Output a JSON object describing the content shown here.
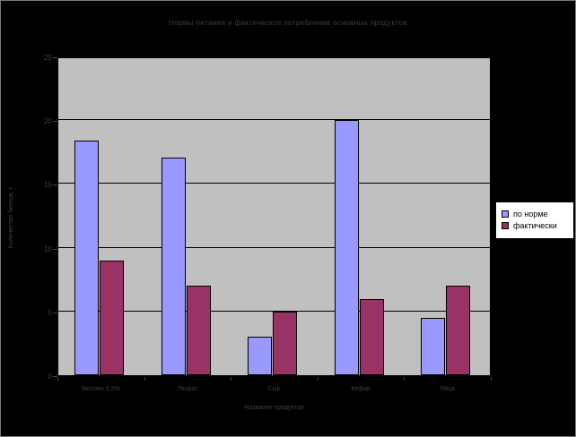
{
  "window": {
    "background": "#000000",
    "plot_background": "#c0c0c0",
    "gridline_color": "#000000",
    "text_color": "#413d47"
  },
  "chart_data": {
    "type": "bar",
    "title": "Нормы питания и фактическое потребление основных продуктов",
    "categories": [
      "Молоко 3,2%",
      "Творог",
      "Сыр",
      "Кефир",
      "Яйца"
    ],
    "series": [
      {
        "name": "по норме",
        "color": "#9999ff",
        "values": [
          18.4,
          17.1,
          3,
          20,
          4.5
        ]
      },
      {
        "name": "фактически",
        "color": "#993366",
        "values": [
          9,
          7,
          5,
          6,
          7
        ]
      }
    ],
    "xlabel": "Название продуктов",
    "ylabel": "Количество белков, г",
    "ylim": [
      0,
      25
    ],
    "yticks": [
      "0",
      "5",
      "10",
      "15",
      "20",
      "25"
    ],
    "ytick_interval": 5,
    "grid": true,
    "legend_position": "right"
  }
}
